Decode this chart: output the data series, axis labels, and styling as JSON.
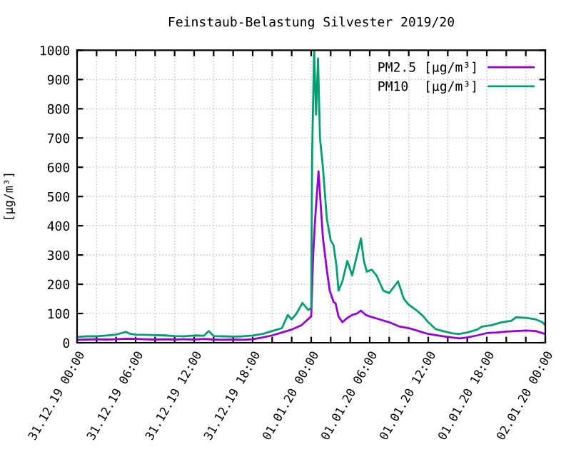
{
  "chart_data": {
    "type": "line",
    "title": "Feinstaub-Belastung Silvester 2019/20",
    "ylabel": "[µg/m³]",
    "xlim": [
      "2019-12-31T00:00",
      "2020-01-02T00:00"
    ],
    "ylim": [
      0,
      1000
    ],
    "xticks": [
      {
        "value": "2019-12-31T00:00",
        "label": "31.12.19 00:00"
      },
      {
        "value": "2019-12-31T02:00",
        "label": null
      },
      {
        "value": "2019-12-31T04:00",
        "label": null
      },
      {
        "value": "2019-12-31T06:00",
        "label": "31.12.19 06:00"
      },
      {
        "value": "2019-12-31T08:00",
        "label": null
      },
      {
        "value": "2019-12-31T10:00",
        "label": null
      },
      {
        "value": "2019-12-31T12:00",
        "label": "31.12.19 12:00"
      },
      {
        "value": "2019-12-31T14:00",
        "label": null
      },
      {
        "value": "2019-12-31T16:00",
        "label": null
      },
      {
        "value": "2019-12-31T18:00",
        "label": "31.12.19 18:00"
      },
      {
        "value": "2019-12-31T20:00",
        "label": null
      },
      {
        "value": "2019-12-31T22:00",
        "label": null
      },
      {
        "value": "2020-01-01T00:00",
        "label": "01.01.20 00:00"
      },
      {
        "value": "2020-01-01T02:00",
        "label": null
      },
      {
        "value": "2020-01-01T04:00",
        "label": null
      },
      {
        "value": "2020-01-01T06:00",
        "label": "01.01.20 06:00"
      },
      {
        "value": "2020-01-01T08:00",
        "label": null
      },
      {
        "value": "2020-01-01T10:00",
        "label": null
      },
      {
        "value": "2020-01-01T12:00",
        "label": "01.01.20 12:00"
      },
      {
        "value": "2020-01-01T14:00",
        "label": null
      },
      {
        "value": "2020-01-01T16:00",
        "label": null
      },
      {
        "value": "2020-01-01T18:00",
        "label": "01.01.20 18:00"
      },
      {
        "value": "2020-01-01T20:00",
        "label": null
      },
      {
        "value": "2020-01-01T22:00",
        "label": null
      },
      {
        "value": "2020-01-02T00:00",
        "label": "02.01.20 00:00"
      }
    ],
    "yticks": [
      0,
      100,
      200,
      300,
      400,
      500,
      600,
      700,
      800,
      900,
      1000
    ],
    "grid": true,
    "legend": "top right",
    "marker": "none",
    "line_style": "solid",
    "series": [
      {
        "name": "PM2.5 [µg/m³]",
        "color": "#9400d3",
        "x": [
          "2019-12-31T00:00",
          "2019-12-31T01:00",
          "2019-12-31T02:00",
          "2019-12-31T03:00",
          "2019-12-31T04:00",
          "2019-12-31T05:00",
          "2019-12-31T06:00",
          "2019-12-31T07:00",
          "2019-12-31T08:00",
          "2019-12-31T09:00",
          "2019-12-31T10:00",
          "2019-12-31T11:00",
          "2019-12-31T12:00",
          "2019-12-31T13:00",
          "2019-12-31T14:00",
          "2019-12-31T15:00",
          "2019-12-31T16:00",
          "2019-12-31T17:00",
          "2019-12-31T18:00",
          "2019-12-31T19:00",
          "2019-12-31T20:00",
          "2019-12-31T21:00",
          "2019-12-31T22:00",
          "2019-12-31T23:00",
          "2019-12-31T23:30",
          "2020-01-01T00:00",
          "2020-01-01T00:12",
          "2020-01-01T00:24",
          "2020-01-01T00:45",
          "2020-01-01T01:12",
          "2020-01-01T01:36",
          "2020-01-01T01:54",
          "2020-01-01T02:18",
          "2020-01-01T02:30",
          "2020-01-01T02:48",
          "2020-01-01T03:12",
          "2020-01-01T03:42",
          "2020-01-01T04:12",
          "2020-01-01T04:42",
          "2020-01-01T05:06",
          "2020-01-01T05:36",
          "2020-01-01T06:00",
          "2020-01-01T07:00",
          "2020-01-01T08:00",
          "2020-01-01T09:00",
          "2020-01-01T10:00",
          "2020-01-01T11:00",
          "2020-01-01T12:00",
          "2020-01-01T13:00",
          "2020-01-01T14:00",
          "2020-01-01T15:12",
          "2020-01-01T16:00",
          "2020-01-01T17:00",
          "2020-01-01T18:00",
          "2020-01-01T19:00",
          "2020-01-01T20:00",
          "2020-01-01T21:00",
          "2020-01-01T22:00",
          "2020-01-01T23:00",
          "2020-01-02T00:00"
        ],
        "values": [
          10,
          11,
          12,
          11,
          12,
          14,
          13,
          12,
          11,
          12,
          11,
          12,
          11,
          13,
          11,
          10,
          11,
          10,
          12,
          18,
          25,
          35,
          45,
          60,
          75,
          90,
          300,
          420,
          586,
          360,
          250,
          178,
          139,
          135,
          90,
          70,
          85,
          95,
          100,
          110,
          95,
          90,
          80,
          70,
          56,
          50,
          40,
          30,
          25,
          20,
          15,
          18,
          25,
          33,
          35,
          38,
          40,
          42,
          40,
          30
        ]
      },
      {
        "name": "PM10  [µg/m³]",
        "color": "#009e73",
        "x": [
          "2019-12-31T00:00",
          "2019-12-31T01:00",
          "2019-12-31T02:00",
          "2019-12-31T03:00",
          "2019-12-31T04:00",
          "2019-12-31T05:00",
          "2019-12-31T05:30",
          "2019-12-31T06:00",
          "2019-12-31T07:00",
          "2019-12-31T08:00",
          "2019-12-31T09:00",
          "2019-12-31T10:00",
          "2019-12-31T11:00",
          "2019-12-31T12:00",
          "2019-12-31T13:00",
          "2019-12-31T13:30",
          "2019-12-31T14:00",
          "2019-12-31T15:00",
          "2019-12-31T16:00",
          "2019-12-31T17:00",
          "2019-12-31T18:00",
          "2019-12-31T19:00",
          "2019-12-31T19:30",
          "2019-12-31T20:00",
          "2019-12-31T20:30",
          "2019-12-31T21:00",
          "2019-12-31T21:36",
          "2019-12-31T22:00",
          "2019-12-31T22:30",
          "2019-12-31T23:06",
          "2019-12-31T23:42",
          "2020-01-01T00:00",
          "2020-01-01T00:06",
          "2020-01-01T00:18",
          "2020-01-01T00:30",
          "2020-01-01T00:42",
          "2020-01-01T00:54",
          "2020-01-01T01:12",
          "2020-01-01T01:36",
          "2020-01-01T02:00",
          "2020-01-01T02:18",
          "2020-01-01T02:36",
          "2020-01-01T02:48",
          "2020-01-01T03:12",
          "2020-01-01T03:42",
          "2020-01-01T04:12",
          "2020-01-01T04:42",
          "2020-01-01T05:06",
          "2020-01-01T05:24",
          "2020-01-01T05:42",
          "2020-01-01T06:12",
          "2020-01-01T06:42",
          "2020-01-01T07:24",
          "2020-01-01T08:00",
          "2020-01-01T08:54",
          "2020-01-01T09:30",
          "2020-01-01T10:00",
          "2020-01-01T10:48",
          "2020-01-01T11:30",
          "2020-01-01T12:00",
          "2020-01-01T12:48",
          "2020-01-01T13:30",
          "2020-01-01T14:30",
          "2020-01-01T15:12",
          "2020-01-01T16:00",
          "2020-01-01T17:00",
          "2020-01-01T17:30",
          "2020-01-01T18:30",
          "2020-01-01T19:30",
          "2020-01-01T20:30",
          "2020-01-01T21:00",
          "2020-01-01T22:00",
          "2020-01-01T23:00",
          "2020-01-01T23:42",
          "2020-01-02T00:00"
        ],
        "values": [
          20,
          22,
          22,
          25,
          28,
          37,
          30,
          28,
          27,
          26,
          25,
          23,
          22,
          25,
          24,
          40,
          23,
          22,
          21,
          22,
          25,
          30,
          35,
          40,
          45,
          50,
          95,
          80,
          100,
          136,
          112,
          120,
          650,
          1000,
          780,
          972,
          700,
          600,
          425,
          350,
          333,
          260,
          178,
          210,
          280,
          230,
          300,
          357,
          280,
          243,
          250,
          230,
          178,
          170,
          210,
          150,
          130,
          111,
          90,
          70,
          46,
          40,
          32,
          30,
          35,
          45,
          55,
          60,
          70,
          75,
          87,
          85,
          80,
          70,
          60
        ]
      }
    ]
  }
}
